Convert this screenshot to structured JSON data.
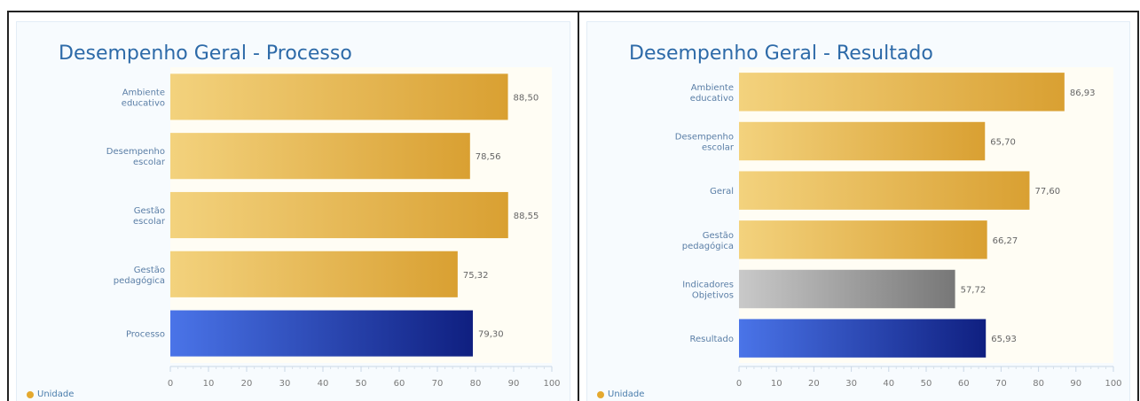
{
  "colors": {
    "title": "#2d6aa8",
    "gold_light": "#f3d27d",
    "gold_dark": "#d9a032",
    "blue_light": "#4a74e8",
    "blue_dark": "#0f1f80",
    "gray_light": "#c9c9c9",
    "gray_dark": "#777777",
    "label": "#5a7ea6"
  },
  "chart_data": [
    {
      "type": "bar",
      "orientation": "horizontal",
      "title": "Desempenho Geral - Processo",
      "categories": [
        [
          "Ambiente",
          "educativo"
        ],
        [
          "Desempenho",
          "escolar"
        ],
        [
          "Gestão",
          "escolar"
        ],
        [
          "Gestão",
          "pedagógica"
        ],
        [
          "Processo"
        ]
      ],
      "values": [
        88.5,
        78.56,
        88.55,
        75.32,
        79.3
      ],
      "value_labels": [
        "88,50",
        "78,56",
        "88,55",
        "75,32",
        "79,30"
      ],
      "bar_colors": [
        "gold",
        "gold",
        "gold",
        "gold",
        "blue"
      ],
      "xlim": [
        0,
        100
      ],
      "xticks": [
        0,
        10,
        20,
        30,
        40,
        50,
        60,
        70,
        80,
        90,
        100
      ],
      "legend": [
        "Unidade"
      ],
      "legend_position": "bottom-left"
    },
    {
      "type": "bar",
      "orientation": "horizontal",
      "title": "Desempenho Geral - Resultado",
      "categories": [
        [
          "Ambiente",
          "educativo"
        ],
        [
          "Desempenho",
          "escolar"
        ],
        [
          "Geral"
        ],
        [
          "Gestão",
          "pedagógica"
        ],
        [
          "Indicadores",
          "Objetivos"
        ],
        [
          "Resultado"
        ]
      ],
      "values": [
        86.93,
        65.7,
        77.6,
        66.27,
        57.72,
        65.93
      ],
      "value_labels": [
        "86,93",
        "65,70",
        "77,60",
        "66,27",
        "57,72",
        "65,93"
      ],
      "bar_colors": [
        "gold",
        "gold",
        "gold",
        "gold",
        "gray",
        "blue"
      ],
      "xlim": [
        0,
        100
      ],
      "xticks": [
        0,
        10,
        20,
        30,
        40,
        50,
        60,
        70,
        80,
        90,
        100
      ],
      "legend": [
        "Unidade"
      ],
      "legend_position": "bottom-left"
    }
  ]
}
